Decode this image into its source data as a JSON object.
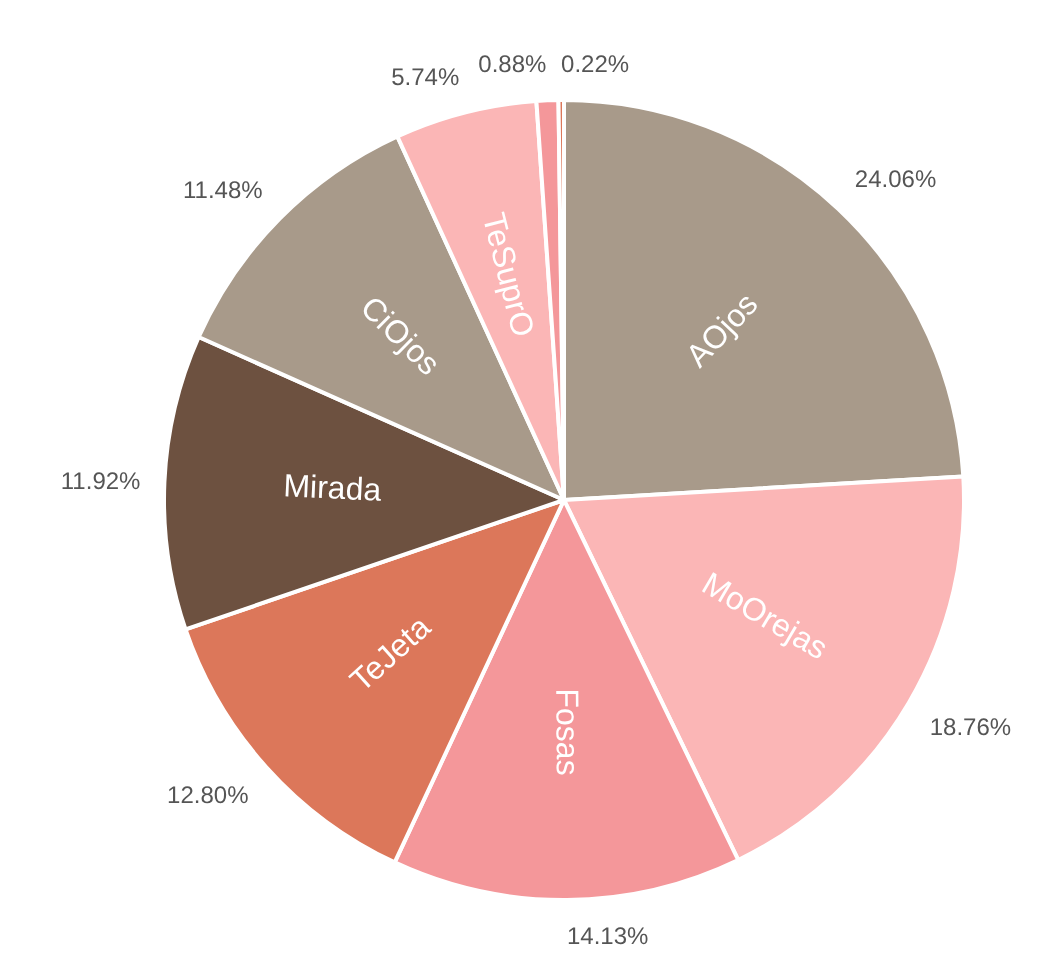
{
  "chart_data": {
    "type": "pie",
    "categories": [
      "AOjos",
      "MoOrejas",
      "Fosas",
      "TeJeta",
      "Mirada",
      "CiOjos",
      "TeSuprO",
      null,
      null
    ],
    "values": [
      24.06,
      18.76,
      14.13,
      12.8,
      11.92,
      11.48,
      5.74,
      0.88,
      0.22
    ],
    "value_labels": [
      "24.06%",
      "18.76%",
      "14.13%",
      "12.80%",
      "11.92%",
      "11.48%",
      "5.74%",
      "0.88%",
      "0.22%"
    ],
    "colors": [
      "#a89a8a",
      "#fbb6b6",
      "#f4979a",
      "#dc775a",
      "#6d5140",
      "#a89a8a",
      "#fbb6b6",
      "#f4979a",
      "#dc775a"
    ]
  }
}
